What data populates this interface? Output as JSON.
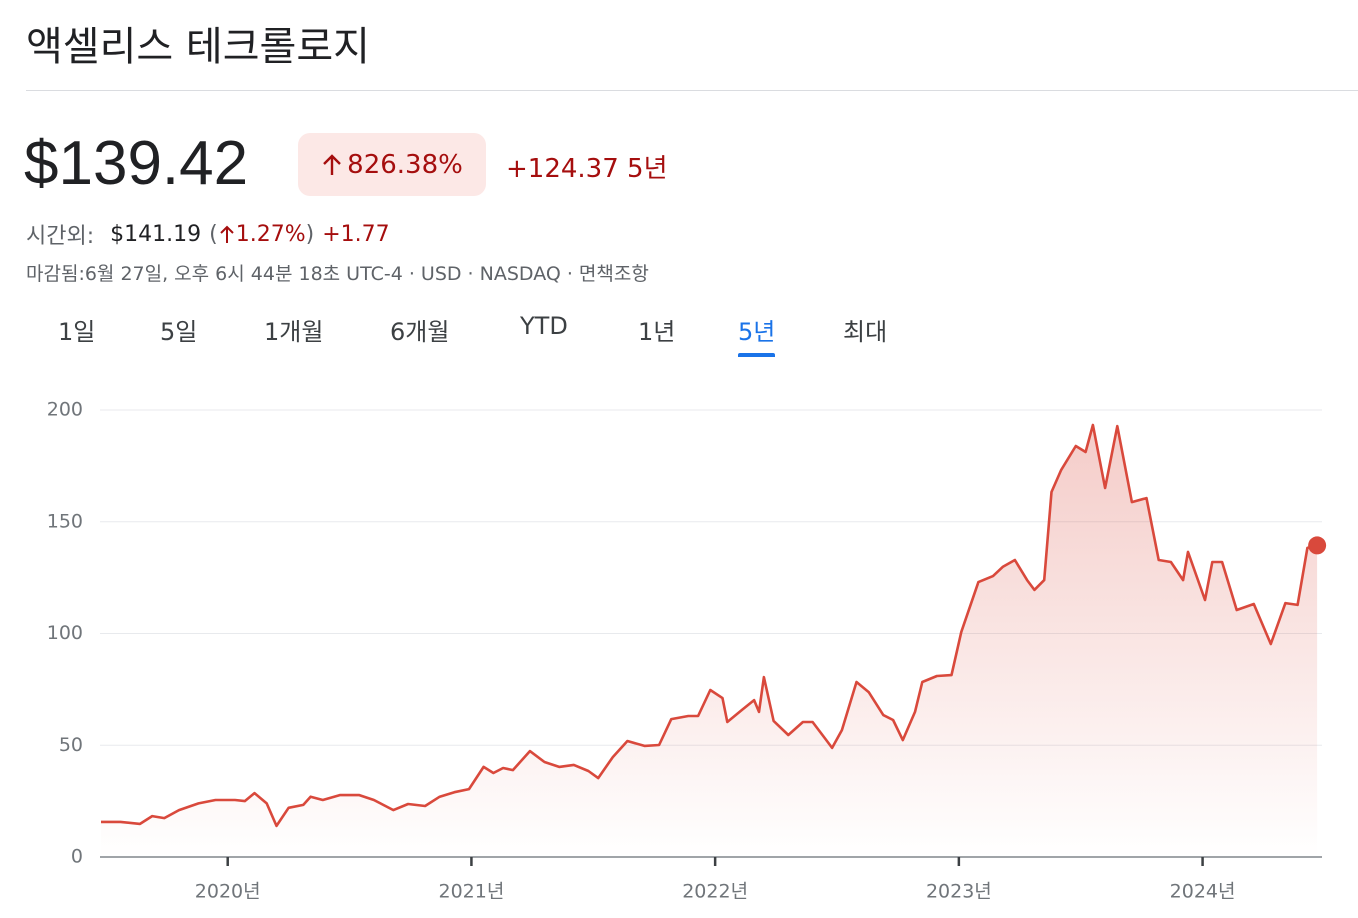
{
  "header": {
    "title": "액셀리스 테크롤로지",
    "price": "$139.42",
    "change_pct": "826.38%",
    "change_abs": "+124.37",
    "period": "5년",
    "after_hours": {
      "label": "시간외:",
      "price": "$141.19",
      "paren_open": "(",
      "pct": "1.27%",
      "paren_close": ")",
      "abs": "+1.77"
    },
    "meta": "마감됨:6월 27일, 오후 6시 44분 18초 UTC-4 · USD · NASDAQ · 면책조항"
  },
  "tabs": {
    "items": [
      "1일",
      "5일",
      "1개월",
      "6개월",
      "YTD",
      "1년",
      "5년",
      "최대"
    ],
    "selected": 6
  },
  "chart_data": {
    "type": "line",
    "color": "#d9493c",
    "grid": true,
    "x": [
      2019.48,
      2019.56,
      2019.64,
      2019.69,
      2019.74,
      2019.8,
      2019.88,
      2019.95,
      2020.03,
      2020.07,
      2020.11,
      2020.16,
      2020.2,
      2020.25,
      2020.31,
      2020.34,
      2020.39,
      2020.46,
      2020.54,
      2020.6,
      2020.68,
      2020.74,
      2020.81,
      2020.87,
      2020.93,
      2020.99,
      2021.05,
      2021.09,
      2021.13,
      2021.17,
      2021.24,
      2021.3,
      2021.36,
      2021.42,
      2021.48,
      2021.52,
      2021.58,
      2021.64,
      2021.71,
      2021.77,
      2021.82,
      2021.89,
      2021.93,
      2021.98,
      2022.03,
      2022.05,
      2022.11,
      2022.16,
      2022.18,
      2022.2,
      2022.24,
      2022.3,
      2022.36,
      2022.4,
      2022.45,
      2022.48,
      2022.52,
      2022.58,
      2022.63,
      2022.69,
      2022.73,
      2022.77,
      2022.82,
      2022.85,
      2022.91,
      2022.97,
      2023.01,
      2023.08,
      2023.14,
      2023.18,
      2023.23,
      2023.28,
      2023.31,
      2023.35,
      2023.38,
      2023.42,
      2023.48,
      2023.52,
      2023.55,
      2023.6,
      2023.65,
      2023.71,
      2023.77,
      2023.82,
      2023.87,
      2023.92,
      2023.94,
      2024.01,
      2024.04,
      2024.08,
      2024.14,
      2024.21,
      2024.28,
      2024.34,
      2024.39,
      2024.43,
      2024.47
    ],
    "values": [
      15.7,
      15.7,
      14.8,
      18.3,
      17.4,
      21,
      24,
      25.5,
      25.5,
      25,
      28.6,
      24,
      13.9,
      22,
      23.3,
      27,
      25.5,
      27.7,
      27.7,
      25.5,
      21,
      23.7,
      22.8,
      27,
      29,
      30.4,
      40.3,
      37.6,
      39.8,
      38.9,
      47.4,
      42.5,
      40.3,
      41.2,
      38.5,
      35.3,
      44.7,
      51.9,
      49.7,
      50.1,
      61.7,
      63.1,
      63.1,
      74.7,
      71.1,
      60.4,
      65.8,
      70.2,
      64.9,
      80.5,
      60.9,
      54.6,
      60.4,
      60.4,
      53.2,
      48.8,
      56.8,
      78.3,
      73.8,
      63.5,
      61.3,
      52.3,
      64.9,
      78.3,
      81,
      81.4,
      100.7,
      123,
      125.7,
      129.8,
      132.9,
      123.9,
      119.5,
      123.9,
      163.3,
      173.2,
      183.9,
      181.2,
      193.3,
      165.1,
      192.8,
      158.8,
      160.6,
      132.9,
      132,
      123.9,
      136.5,
      115,
      132,
      132,
      110.5,
      113.2,
      95.3,
      113.6,
      112.8,
      138.3,
      139.42
    ],
    "xlim": [
      2019.476,
      2024.49
    ],
    "ylim": [
      0,
      200
    ],
    "yticks": [
      0,
      50,
      100,
      150,
      200
    ],
    "xticks": [
      {
        "value": 2020,
        "label": "2020년"
      },
      {
        "value": 2021,
        "label": "2021년"
      },
      {
        "value": 2022,
        "label": "2022년"
      },
      {
        "value": 2023,
        "label": "2023년"
      },
      {
        "value": 2024,
        "label": "2024년"
      }
    ]
  }
}
